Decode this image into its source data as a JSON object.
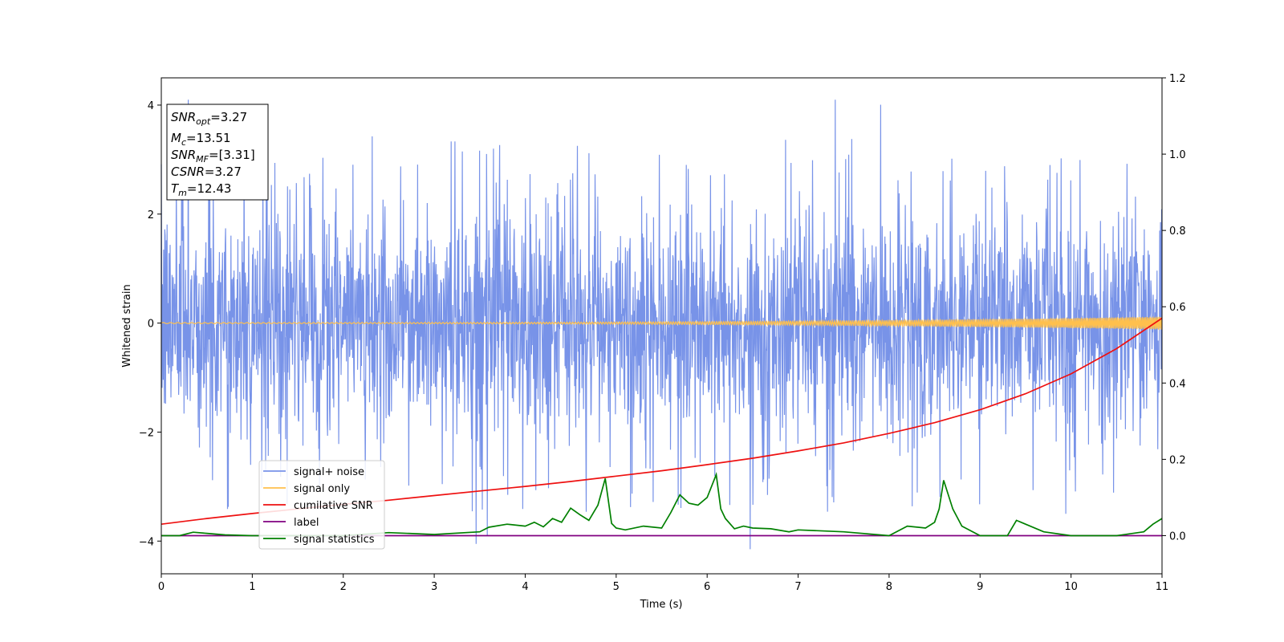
{
  "chart_data": {
    "type": "line",
    "xlabel": "Time (s)",
    "ylabel": "Whitened strain",
    "xlim": [
      0,
      11
    ],
    "ylim": [
      -4.6,
      4.5
    ],
    "y2lim": [
      -0.1,
      1.2
    ],
    "x_ticks": [
      0,
      1,
      2,
      3,
      4,
      5,
      6,
      7,
      8,
      9,
      10,
      11
    ],
    "y_ticks": [
      -4,
      -2,
      0,
      2,
      4
    ],
    "y2_ticks": [
      0.0,
      0.2,
      0.4,
      0.6,
      0.8,
      1.0,
      1.2
    ],
    "grid": false,
    "legend_placement": "lower-left",
    "colors": {
      "signal_noise": "#7893e8",
      "signal_only": "#ffc04d",
      "cumulative_snr": "#ee1111",
      "label": "#800080",
      "signal_statistics": "#008000"
    },
    "legend": [
      {
        "label": "signal+ noise",
        "color": "#7893e8"
      },
      {
        "label": "signal only",
        "color": "#ffc04d"
      },
      {
        "label": "cumilative SNR",
        "color": "#ee1111"
      },
      {
        "label": "label",
        "color": "#800080"
      },
      {
        "label": "signal statistics",
        "color": "#008000"
      }
    ],
    "annotation": [
      {
        "base": "SNR",
        "sub": "opt",
        "value": "=3.27"
      },
      {
        "base": "M",
        "sub": "c",
        "value": "=13.51"
      },
      {
        "base": "SNR",
        "sub": "MF",
        "value": "=[3.31]"
      },
      {
        "base": "CSNR",
        "sub": "",
        "value": "=3.27"
      },
      {
        "base": "T",
        "sub": "m",
        "value": "=12.43"
      }
    ],
    "series": [
      {
        "name": "signal+ noise",
        "axis": "left",
        "noise_band": {
          "x_range": [
            0,
            11
          ],
          "center": 0.0,
          "envelope": 1.4,
          "typical_peak": 3.0,
          "max_peak": 4.1,
          "min_trough": -4.15
        }
      },
      {
        "name": "signal only",
        "axis": "left",
        "chirp": {
          "x_range": [
            0,
            11
          ],
          "amplitude_start": 0.01,
          "amplitude_end": 0.12
        }
      },
      {
        "name": "cumilative SNR",
        "axis": "right",
        "x": [
          0,
          0.5,
          1,
          1.5,
          2,
          2.5,
          3,
          3.5,
          4,
          4.5,
          5,
          5.5,
          6,
          6.5,
          7,
          7.5,
          8,
          8.5,
          9,
          9.5,
          10,
          10.5,
          11
        ],
        "y": [
          0.03,
          0.045,
          0.058,
          0.07,
          0.082,
          0.093,
          0.105,
          0.117,
          0.129,
          0.142,
          0.156,
          0.17,
          0.186,
          0.203,
          0.222,
          0.243,
          0.268,
          0.296,
          0.33,
          0.372,
          0.424,
          0.49,
          0.57
        ]
      },
      {
        "name": "label",
        "axis": "right",
        "x": [
          0,
          11
        ],
        "y": [
          0.0,
          0.0
        ]
      },
      {
        "name": "signal statistics",
        "axis": "right",
        "x": [
          0,
          0.2,
          0.35,
          0.5,
          0.7,
          1.0,
          1.5,
          2.0,
          2.5,
          3.0,
          3.5,
          3.6,
          3.8,
          4.0,
          4.1,
          4.2,
          4.3,
          4.4,
          4.5,
          4.6,
          4.7,
          4.8,
          4.88,
          4.95,
          5.0,
          5.1,
          5.3,
          5.5,
          5.6,
          5.7,
          5.8,
          5.9,
          6.0,
          6.1,
          6.15,
          6.2,
          6.3,
          6.4,
          6.5,
          6.7,
          6.9,
          7.0,
          7.5,
          8.0,
          8.2,
          8.4,
          8.5,
          8.55,
          8.6,
          8.7,
          8.8,
          9.0,
          9.3,
          9.4,
          9.5,
          9.7,
          10.0,
          10.5,
          10.8,
          10.9,
          11.0
        ],
        "y": [
          0.0,
          0.0,
          0.009,
          0.006,
          0.002,
          0.0,
          0.0,
          0.0,
          0.008,
          0.003,
          0.01,
          0.022,
          0.03,
          0.025,
          0.035,
          0.023,
          0.045,
          0.035,
          0.072,
          0.055,
          0.04,
          0.08,
          0.15,
          0.032,
          0.02,
          0.015,
          0.025,
          0.02,
          0.06,
          0.107,
          0.085,
          0.08,
          0.1,
          0.16,
          0.07,
          0.045,
          0.018,
          0.025,
          0.02,
          0.018,
          0.01,
          0.015,
          0.01,
          0.0,
          0.025,
          0.02,
          0.035,
          0.07,
          0.145,
          0.07,
          0.025,
          0.0,
          0.0,
          0.04,
          0.03,
          0.01,
          0.0,
          0.0,
          0.01,
          0.03,
          0.045
        ]
      }
    ]
  }
}
